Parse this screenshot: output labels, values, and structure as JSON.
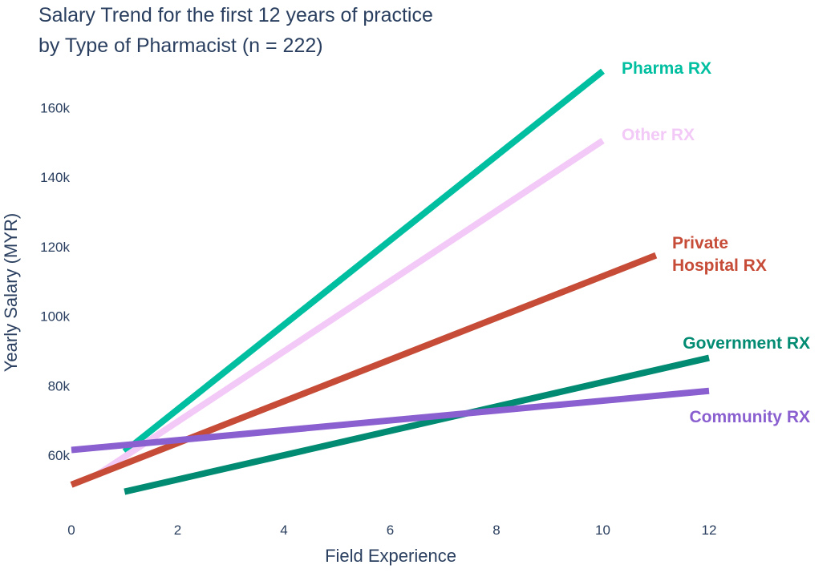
{
  "chart_data": {
    "type": "line",
    "title": [
      "Salary Trend for the first 12 years of practice",
      "by Type of Pharmacist (n = 222)"
    ],
    "xlabel": "Field Experience",
    "ylabel": "Yearly Salary (MYR)",
    "xlim": [
      0,
      14
    ],
    "ylim": [
      44000,
      176000
    ],
    "x_ticks": [
      0,
      2,
      4,
      6,
      8,
      10,
      12
    ],
    "x_tick_labels": [
      "0",
      "2",
      "4",
      "6",
      "8",
      "10",
      "12"
    ],
    "y_ticks": [
      60000,
      80000,
      100000,
      120000,
      140000,
      160000
    ],
    "y_tick_labels": [
      "60k",
      "80k",
      "100k",
      "120k",
      "140k",
      "160k"
    ],
    "grid": false,
    "legend": "none",
    "series": [
      {
        "name": "Pharma RX",
        "label": [
          "Pharma RX"
        ],
        "color": "#00bfa0",
        "x": [
          1,
          10
        ],
        "y": [
          61000,
          170500
        ],
        "label_anchor": "start"
      },
      {
        "name": "Other RX",
        "label": [
          "Other RX"
        ],
        "color": "#f2c9f7",
        "x": [
          0.5,
          10
        ],
        "y": [
          54500,
          150500
        ],
        "label_anchor": "start"
      },
      {
        "name": "Private Hospital RX",
        "label": [
          "Private",
          "Hospital RX"
        ],
        "color": "#c64c38",
        "x": [
          0,
          11
        ],
        "y": [
          51500,
          117500
        ],
        "label_anchor": "start"
      },
      {
        "name": "Government RX",
        "label": [
          "Government RX"
        ],
        "color": "#008b72",
        "x": [
          1,
          12
        ],
        "y": [
          49500,
          88000
        ],
        "label_anchor": "end"
      },
      {
        "name": "Community RX",
        "label": [
          "Community RX"
        ],
        "color": "#8a5fcf",
        "x": [
          0,
          12
        ],
        "y": [
          61500,
          78500
        ],
        "label_anchor": "end"
      }
    ]
  }
}
